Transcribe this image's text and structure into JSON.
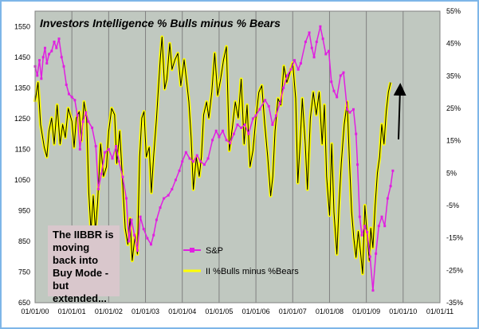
{
  "chart_data": {
    "type": "line",
    "title": "Investors Intelligence % Bulls minus % Bears",
    "x_ticks": [
      "01/01/00",
      "01/01/01",
      "01/01/02",
      "01/01/03",
      "01/01/04",
      "01/01/05",
      "01/01/06",
      "01/01/07",
      "01/01/08",
      "01/01/09",
      "01/01/10",
      "01/01/11"
    ],
    "y_left_ticks": [
      650,
      750,
      850,
      950,
      1050,
      1150,
      1250,
      1350,
      1450,
      1550
    ],
    "y_left_lim": [
      650,
      1600
    ],
    "y_right_ticks": [
      "-35%",
      "-25%",
      "-15%",
      "-5%",
      "5%",
      "15%",
      "25%",
      "35%",
      "45%",
      "55%"
    ],
    "y_right_lim": [
      -35,
      55
    ],
    "grid": "vertical",
    "plot_background": "#c0c8c0",
    "legend_position": "lower-center",
    "series": [
      {
        "name": "S&P",
        "axis": "left",
        "color": "#e020e0",
        "marker": "square",
        "points": [
          [
            2000.0,
            1420
          ],
          [
            2000.06,
            1390
          ],
          [
            2000.12,
            1440
          ],
          [
            2000.17,
            1380
          ],
          [
            2000.22,
            1450
          ],
          [
            2000.27,
            1480
          ],
          [
            2000.32,
            1430
          ],
          [
            2000.38,
            1460
          ],
          [
            2000.45,
            1470
          ],
          [
            2000.52,
            1500
          ],
          [
            2000.58,
            1480
          ],
          [
            2000.65,
            1510
          ],
          [
            2000.72,
            1450
          ],
          [
            2000.78,
            1420
          ],
          [
            2000.85,
            1360
          ],
          [
            2000.92,
            1330
          ],
          [
            2001.0,
            1320
          ],
          [
            2001.08,
            1310
          ],
          [
            2001.15,
            1260
          ],
          [
            2001.22,
            1150
          ],
          [
            2001.3,
            1240
          ],
          [
            2001.38,
            1270
          ],
          [
            2001.45,
            1240
          ],
          [
            2001.55,
            1220
          ],
          [
            2001.65,
            1160
          ],
          [
            2001.72,
            1020
          ],
          [
            2001.8,
            1070
          ],
          [
            2001.9,
            1140
          ],
          [
            2002.0,
            1150
          ],
          [
            2002.1,
            1120
          ],
          [
            2002.2,
            1160
          ],
          [
            2002.28,
            1110
          ],
          [
            2002.38,
            1060
          ],
          [
            2002.48,
            990
          ],
          [
            2002.55,
            850
          ],
          [
            2002.62,
            920
          ],
          [
            2002.7,
            870
          ],
          [
            2002.78,
            820
          ],
          [
            2002.86,
            930
          ],
          [
            2002.95,
            890
          ],
          [
            2003.05,
            860
          ],
          [
            2003.15,
            840
          ],
          [
            2003.22,
            870
          ],
          [
            2003.3,
            920
          ],
          [
            2003.4,
            960
          ],
          [
            2003.5,
            990
          ],
          [
            2003.62,
            1000
          ],
          [
            2003.72,
            1020
          ],
          [
            2003.82,
            1050
          ],
          [
            2003.92,
            1080
          ],
          [
            2004.0,
            1110
          ],
          [
            2004.1,
            1140
          ],
          [
            2004.2,
            1120
          ],
          [
            2004.3,
            1110
          ],
          [
            2004.4,
            1130
          ],
          [
            2004.5,
            1110
          ],
          [
            2004.6,
            1100
          ],
          [
            2004.7,
            1120
          ],
          [
            2004.82,
            1180
          ],
          [
            2004.92,
            1210
          ],
          [
            2005.0,
            1190
          ],
          [
            2005.1,
            1210
          ],
          [
            2005.2,
            1180
          ],
          [
            2005.3,
            1170
          ],
          [
            2005.4,
            1200
          ],
          [
            2005.5,
            1230
          ],
          [
            2005.6,
            1220
          ],
          [
            2005.7,
            1230
          ],
          [
            2005.8,
            1200
          ],
          [
            2005.92,
            1250
          ],
          [
            2006.0,
            1260
          ],
          [
            2006.1,
            1280
          ],
          [
            2006.25,
            1310
          ],
          [
            2006.35,
            1290
          ],
          [
            2006.45,
            1230
          ],
          [
            2006.55,
            1260
          ],
          [
            2006.65,
            1300
          ],
          [
            2006.75,
            1350
          ],
          [
            2006.85,
            1390
          ],
          [
            2006.95,
            1410
          ],
          [
            2007.05,
            1440
          ],
          [
            2007.15,
            1410
          ],
          [
            2007.22,
            1430
          ],
          [
            2007.35,
            1500
          ],
          [
            2007.45,
            1530
          ],
          [
            2007.52,
            1480
          ],
          [
            2007.58,
            1450
          ],
          [
            2007.65,
            1500
          ],
          [
            2007.75,
            1550
          ],
          [
            2007.82,
            1510
          ],
          [
            2007.9,
            1460
          ],
          [
            2007.98,
            1470
          ],
          [
            2008.05,
            1370
          ],
          [
            2008.12,
            1340
          ],
          [
            2008.2,
            1320
          ],
          [
            2008.3,
            1390
          ],
          [
            2008.38,
            1400
          ],
          [
            2008.48,
            1280
          ],
          [
            2008.55,
            1270
          ],
          [
            2008.65,
            1280
          ],
          [
            2008.72,
            1200
          ],
          [
            2008.76,
            1100
          ],
          [
            2008.82,
            930
          ],
          [
            2008.88,
            870
          ],
          [
            2008.95,
            900
          ],
          [
            2009.02,
            880
          ],
          [
            2009.1,
            800
          ],
          [
            2009.18,
            690
          ],
          [
            2009.26,
            810
          ],
          [
            2009.34,
            900
          ],
          [
            2009.42,
            930
          ],
          [
            2009.5,
            900
          ],
          [
            2009.58,
            990
          ],
          [
            2009.66,
            1030
          ],
          [
            2009.72,
            1080
          ]
        ]
      },
      {
        "name": "II %Bulls minus %Bears",
        "axis": "right",
        "color": "#ffff00",
        "line_color": "#000000",
        "points": [
          [
            2000.0,
            27
          ],
          [
            2000.08,
            33
          ],
          [
            2000.15,
            20
          ],
          [
            2000.25,
            13
          ],
          [
            2000.32,
            10
          ],
          [
            2000.38,
            18
          ],
          [
            2000.45,
            22
          ],
          [
            2000.52,
            14
          ],
          [
            2000.6,
            26
          ],
          [
            2000.68,
            14
          ],
          [
            2000.75,
            20
          ],
          [
            2000.82,
            16
          ],
          [
            2000.9,
            25
          ],
          [
            2001.0,
            21
          ],
          [
            2001.06,
            13
          ],
          [
            2001.12,
            22
          ],
          [
            2001.2,
            24
          ],
          [
            2001.26,
            15
          ],
          [
            2001.33,
            27
          ],
          [
            2001.4,
            22
          ],
          [
            2001.46,
            -1
          ],
          [
            2001.52,
            -13
          ],
          [
            2001.58,
            -2
          ],
          [
            2001.64,
            -13
          ],
          [
            2001.7,
            -4
          ],
          [
            2001.78,
            14
          ],
          [
            2001.86,
            4
          ],
          [
            2001.94,
            7
          ],
          [
            2002.0,
            18
          ],
          [
            2002.08,
            25
          ],
          [
            2002.16,
            23
          ],
          [
            2002.22,
            8
          ],
          [
            2002.3,
            18
          ],
          [
            2002.38,
            2
          ],
          [
            2002.45,
            -12
          ],
          [
            2002.52,
            -17
          ],
          [
            2002.58,
            -9
          ],
          [
            2002.64,
            -22
          ],
          [
            2002.72,
            -14
          ],
          [
            2002.78,
            -20
          ],
          [
            2002.84,
            10
          ],
          [
            2002.9,
            22
          ],
          [
            2002.96,
            24
          ],
          [
            2003.02,
            10
          ],
          [
            2003.1,
            13
          ],
          [
            2003.16,
            -1
          ],
          [
            2003.22,
            10
          ],
          [
            2003.3,
            22
          ],
          [
            2003.4,
            40
          ],
          [
            2003.45,
            47
          ],
          [
            2003.52,
            31
          ],
          [
            2003.58,
            34
          ],
          [
            2003.66,
            45
          ],
          [
            2003.72,
            37
          ],
          [
            2003.8,
            40
          ],
          [
            2003.88,
            42
          ],
          [
            2003.96,
            32
          ],
          [
            2004.05,
            40
          ],
          [
            2004.12,
            33
          ],
          [
            2004.18,
            27
          ],
          [
            2004.24,
            16
          ],
          [
            2004.3,
            0
          ],
          [
            2004.38,
            10
          ],
          [
            2004.46,
            4
          ],
          [
            2004.52,
            10
          ],
          [
            2004.58,
            23
          ],
          [
            2004.66,
            27
          ],
          [
            2004.72,
            22
          ],
          [
            2004.8,
            30
          ],
          [
            2004.88,
            42
          ],
          [
            2004.96,
            29
          ],
          [
            2005.04,
            34
          ],
          [
            2005.12,
            40
          ],
          [
            2005.2,
            44
          ],
          [
            2005.28,
            12
          ],
          [
            2005.36,
            19
          ],
          [
            2005.44,
            27
          ],
          [
            2005.52,
            22
          ],
          [
            2005.6,
            34
          ],
          [
            2005.68,
            14
          ],
          [
            2005.76,
            26
          ],
          [
            2005.84,
            7
          ],
          [
            2005.92,
            12
          ],
          [
            2006.0,
            22
          ],
          [
            2006.08,
            30
          ],
          [
            2006.16,
            32
          ],
          [
            2006.24,
            20
          ],
          [
            2006.32,
            10
          ],
          [
            2006.4,
            -2
          ],
          [
            2006.46,
            4
          ],
          [
            2006.52,
            18
          ],
          [
            2006.6,
            28
          ],
          [
            2006.68,
            26
          ],
          [
            2006.76,
            38
          ],
          [
            2006.84,
            33
          ],
          [
            2006.92,
            36
          ],
          [
            2007.0,
            39
          ],
          [
            2007.08,
            28
          ],
          [
            2007.14,
            2
          ],
          [
            2007.2,
            14
          ],
          [
            2007.26,
            28
          ],
          [
            2007.34,
            14
          ],
          [
            2007.4,
            0
          ],
          [
            2007.48,
            22
          ],
          [
            2007.56,
            30
          ],
          [
            2007.64,
            23
          ],
          [
            2007.72,
            30
          ],
          [
            2007.8,
            14
          ],
          [
            2007.86,
            26
          ],
          [
            2007.92,
            4
          ],
          [
            2008.0,
            -8
          ],
          [
            2008.06,
            14
          ],
          [
            2008.12,
            -7
          ],
          [
            2008.2,
            -20
          ],
          [
            2008.26,
            -4
          ],
          [
            2008.32,
            8
          ],
          [
            2008.4,
            20
          ],
          [
            2008.48,
            27
          ],
          [
            2008.54,
            9
          ],
          [
            2008.6,
            -7
          ],
          [
            2008.66,
            -15
          ],
          [
            2008.72,
            -21
          ],
          [
            2008.78,
            -13
          ],
          [
            2008.84,
            -19
          ],
          [
            2008.9,
            -26
          ],
          [
            2008.96,
            -5
          ],
          [
            2009.02,
            -14
          ],
          [
            2009.08,
            -22
          ],
          [
            2009.12,
            -12
          ],
          [
            2009.18,
            -18
          ],
          [
            2009.24,
            -5
          ],
          [
            2009.3,
            5
          ],
          [
            2009.36,
            10
          ],
          [
            2009.42,
            20
          ],
          [
            2009.48,
            14
          ],
          [
            2009.54,
            24
          ],
          [
            2009.6,
            30
          ],
          [
            2009.66,
            33
          ]
        ]
      }
    ],
    "annotation": "The IIBBR is moving back into Buy Mode - but extended..."
  }
}
